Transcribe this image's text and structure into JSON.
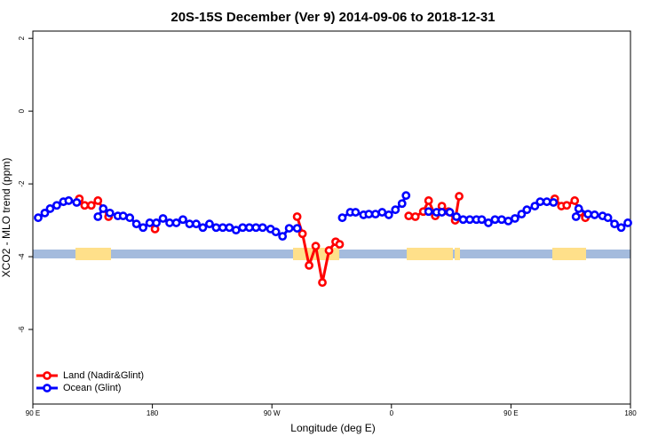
{
  "chart_data": {
    "type": "line",
    "title": "20S-15S December (Ver 9)   2014-09-06 to 2018-12-31",
    "x_label": "Longitude (deg E)",
    "y_label": "XCO2 - MLO trend (ppm)",
    "xlim": [
      90,
      540
    ],
    "ylim": [
      -8.05,
      2.2
    ],
    "xticks": [
      {
        "value": 90,
        "label": "90 E"
      },
      180,
      {
        "value": 270,
        "label": "90 W"
      },
      {
        "value": 360,
        "label": "0"
      },
      {
        "value": 450,
        "label": "90 E"
      },
      {
        "value": 540,
        "label": "180"
      }
    ],
    "yticks": [
      2,
      0,
      -2,
      -4,
      -6
    ],
    "legend": "bottomleft",
    "series": [
      {
        "name": "Land (Nadir&Glint)",
        "color": "#ff0000",
        "x": [
          125,
          129,
          134,
          139,
          147,
          null,
          182,
          null,
          289,
          293,
          298,
          303,
          308,
          313,
          318,
          321,
          null,
          373,
          378,
          384,
          388,
          393,
          398,
          403,
          408,
          411,
          null,
          483,
          488,
          492,
          498,
          502,
          506
        ],
        "values": [
          -2.41,
          -2.59,
          -2.59,
          -2.46,
          -2.9,
          null,
          -3.24,
          null,
          -2.9,
          -3.37,
          -4.24,
          -3.71,
          -4.71,
          -3.83,
          -3.59,
          -3.66,
          null,
          -2.88,
          -2.9,
          -2.76,
          -2.46,
          -2.88,
          -2.61,
          -2.76,
          -3.0,
          -2.34,
          null,
          -2.41,
          -2.61,
          -2.59,
          -2.46,
          -2.78,
          -2.93
        ]
      },
      {
        "name": "Ocean (Glint)",
        "color": "#0000ff",
        "x": [
          94,
          99,
          103,
          108,
          113,
          117,
          123,
          null,
          139,
          143,
          148,
          154,
          158,
          163,
          168,
          173,
          178,
          183,
          188,
          193,
          198,
          203,
          208,
          213,
          218,
          223,
          228,
          233,
          238,
          243,
          248,
          253,
          258,
          263,
          269,
          273,
          278,
          283,
          289,
          null,
          323,
          329,
          333,
          339,
          343,
          348,
          353,
          358,
          363,
          368,
          371,
          null,
          388,
          394,
          398,
          404,
          409,
          414,
          419,
          424,
          428,
          433,
          438,
          443,
          448,
          453,
          458,
          462,
          468,
          472,
          477,
          482,
          null,
          499,
          501,
          508,
          513,
          519,
          523,
          528,
          533,
          538
        ],
        "values": [
          -2.93,
          -2.8,
          -2.68,
          -2.59,
          -2.49,
          -2.46,
          -2.51,
          null,
          -2.9,
          -2.68,
          -2.8,
          -2.88,
          -2.88,
          -2.93,
          -3.1,
          -3.2,
          -3.07,
          -3.07,
          -2.95,
          -3.07,
          -3.07,
          -2.98,
          -3.1,
          -3.1,
          -3.2,
          -3.1,
          -3.2,
          -3.2,
          -3.2,
          -3.27,
          -3.2,
          -3.2,
          -3.2,
          -3.2,
          -3.24,
          -3.32,
          -3.44,
          -3.22,
          -3.22,
          null,
          -2.93,
          -2.78,
          -2.78,
          -2.85,
          -2.83,
          -2.83,
          -2.78,
          -2.85,
          -2.71,
          -2.54,
          -2.32,
          null,
          -2.76,
          -2.78,
          -2.78,
          -2.78,
          -2.9,
          -2.98,
          -2.98,
          -2.98,
          -2.98,
          -3.07,
          -2.98,
          -2.98,
          -3.02,
          -2.95,
          -2.83,
          -2.71,
          -2.61,
          -2.49,
          -2.49,
          -2.51,
          null,
          -2.9,
          -2.68,
          -2.83,
          -2.85,
          -2.88,
          -2.93,
          -3.1,
          -3.2,
          -3.07
        ]
      }
    ]
  }
}
